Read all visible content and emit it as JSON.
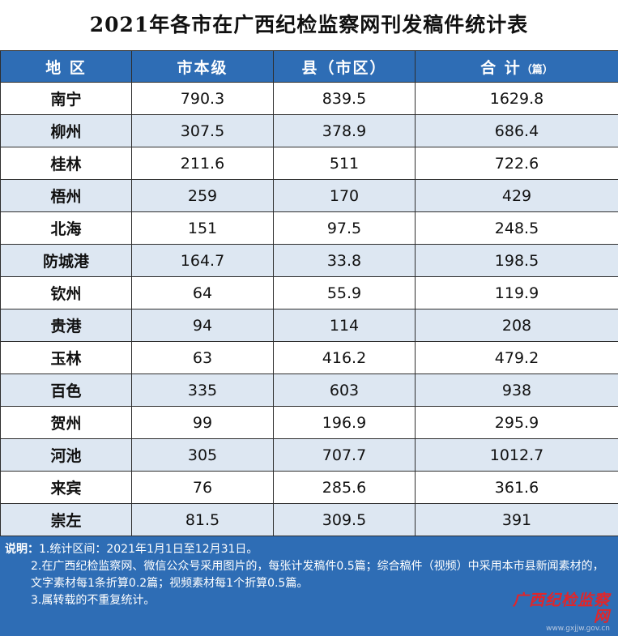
{
  "title": "2021年各市在广西纪检监察网刊发稿件统计表",
  "headers": {
    "region": "地 区",
    "city_level": "市本级",
    "county_level": "县（市区）",
    "total": "合 计",
    "total_unit": "（篇）"
  },
  "rows": [
    {
      "region": "南宁",
      "city": "790.3",
      "county": "839.5",
      "total": "1629.8"
    },
    {
      "region": "柳州",
      "city": "307.5",
      "county": "378.9",
      "total": "686.4"
    },
    {
      "region": "桂林",
      "city": "211.6",
      "county": "511",
      "total": "722.6"
    },
    {
      "region": "梧州",
      "city": "259",
      "county": "170",
      "total": "429"
    },
    {
      "region": "北海",
      "city": "151",
      "county": "97.5",
      "total": "248.5"
    },
    {
      "region": "防城港",
      "city": "164.7",
      "county": "33.8",
      "total": "198.5"
    },
    {
      "region": "钦州",
      "city": "64",
      "county": "55.9",
      "total": "119.9"
    },
    {
      "region": "贵港",
      "city": "94",
      "county": "114",
      "total": "208"
    },
    {
      "region": "玉林",
      "city": "63",
      "county": "416.2",
      "total": "479.2"
    },
    {
      "region": "百色",
      "city": "335",
      "county": "603",
      "total": "938"
    },
    {
      "region": "贺州",
      "city": "99",
      "county": "196.9",
      "total": "295.9"
    },
    {
      "region": "河池",
      "city": "305",
      "county": "707.7",
      "total": "1012.7"
    },
    {
      "region": "来宾",
      "city": "76",
      "county": "285.6",
      "total": "361.6"
    },
    {
      "region": "崇左",
      "city": "81.5",
      "county": "309.5",
      "total": "391"
    }
  ],
  "notes": {
    "label": "说明：",
    "item1": "1.统计区间：2021年1月1日至12月31日。",
    "item2": "2.在广西纪检监察网、微信公众号采用图片的，每张计发稿件0.5篇；综合稿件（视频）中采用本市县新闻素材的，文字素材每1条折算0.2篇；视频素材每1个折算0.5篇。",
    "item3": "3.属转载的不重复统计。"
  },
  "watermark": {
    "text": "广西纪检监察网",
    "url": "www.gxjjw.gov.cn"
  },
  "colors": {
    "header_bg": "#2e6db5",
    "stripe_bg": "#dde7f2",
    "watermark": "#e0262b"
  }
}
